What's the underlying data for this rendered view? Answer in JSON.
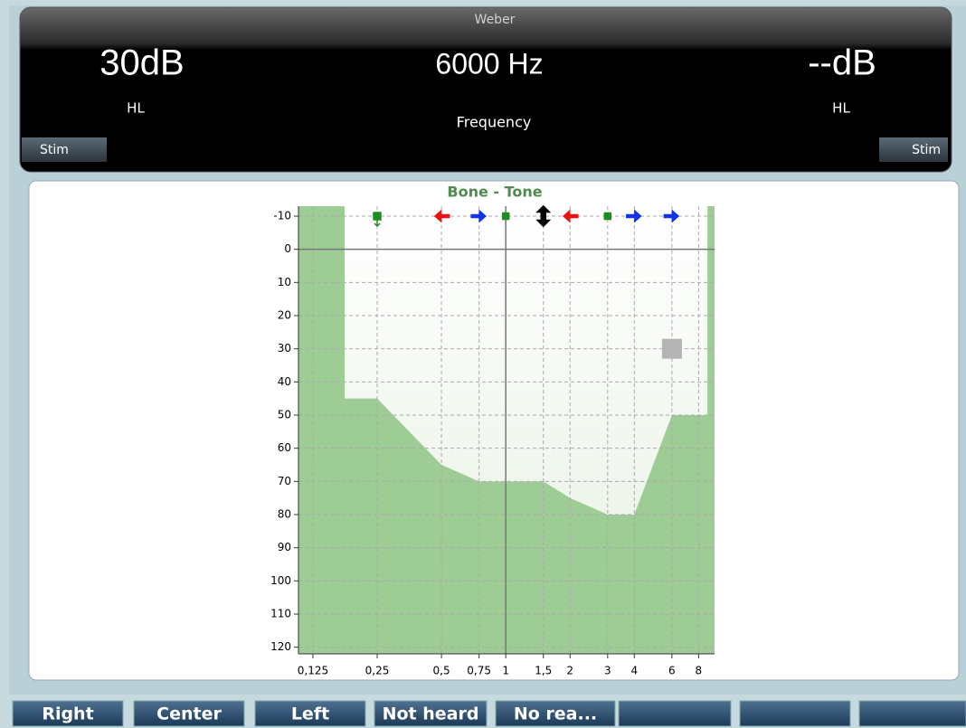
{
  "header": {
    "mode": "Weber",
    "left_level": "30dB",
    "left_unit": "HL",
    "frequency": "6000 Hz",
    "frequency_label": "Frequency",
    "right_level": "--dB",
    "right_unit": "HL",
    "left_stim": "Stim",
    "right_stim": "Stim"
  },
  "audiogram": {
    "title": "Bone - Tone",
    "xlim": [
      0.107,
      9.5
    ],
    "ylim": [
      -13,
      122
    ],
    "xticks": [
      {
        "value": 0.125,
        "label": "0,125"
      },
      {
        "value": 0.25,
        "label": "0,25"
      },
      {
        "value": 0.5,
        "label": "0,5"
      },
      {
        "value": 0.75,
        "label": "0,75"
      },
      1,
      {
        "value": 1.5,
        "label": "1,5"
      },
      2,
      3,
      4,
      6,
      8
    ],
    "yticks": [
      -10,
      0,
      10,
      20,
      30,
      40,
      50,
      60,
      70,
      80,
      90,
      100,
      110,
      120
    ],
    "limit_color": "#9dcc95",
    "limit": {
      "freq": [
        0.176,
        0.176,
        0.25,
        0.5,
        0.75,
        1,
        1.5,
        2,
        3,
        4,
        6,
        8.8,
        8.8
      ],
      "level": [
        -13,
        45,
        45,
        65,
        70,
        70,
        70,
        75,
        80,
        80,
        50,
        50,
        -13
      ]
    },
    "markers": [
      {
        "freq": 0.25,
        "level": -10,
        "kind": "square-down",
        "color": "#1e8c1e"
      },
      {
        "freq": 0.5,
        "level": -10,
        "kind": "arrow-left",
        "color": "#ee1111"
      },
      {
        "freq": 0.75,
        "level": -10,
        "kind": "arrow-right",
        "color": "#1133ee"
      },
      {
        "freq": 1,
        "level": -10,
        "kind": "square",
        "color": "#1e8c1e"
      },
      {
        "freq": 1.5,
        "level": -10,
        "kind": "up-down",
        "color": "#000000"
      },
      {
        "freq": 2,
        "level": -10,
        "kind": "arrow-left",
        "color": "#ee1111"
      },
      {
        "freq": 3,
        "level": -10,
        "kind": "square",
        "color": "#1e8c1e"
      },
      {
        "freq": 4,
        "level": -10,
        "kind": "arrow-right",
        "color": "#1133ee"
      },
      {
        "freq": 6,
        "level": -10,
        "kind": "arrow-right",
        "color": "#1133ee"
      }
    ],
    "cursor": {
      "freq": 6,
      "level": 30,
      "color": "#b4b4b4"
    }
  },
  "buttons": [
    "Right",
    "Center",
    "Left",
    "Not heard",
    "No rea..."
  ]
}
